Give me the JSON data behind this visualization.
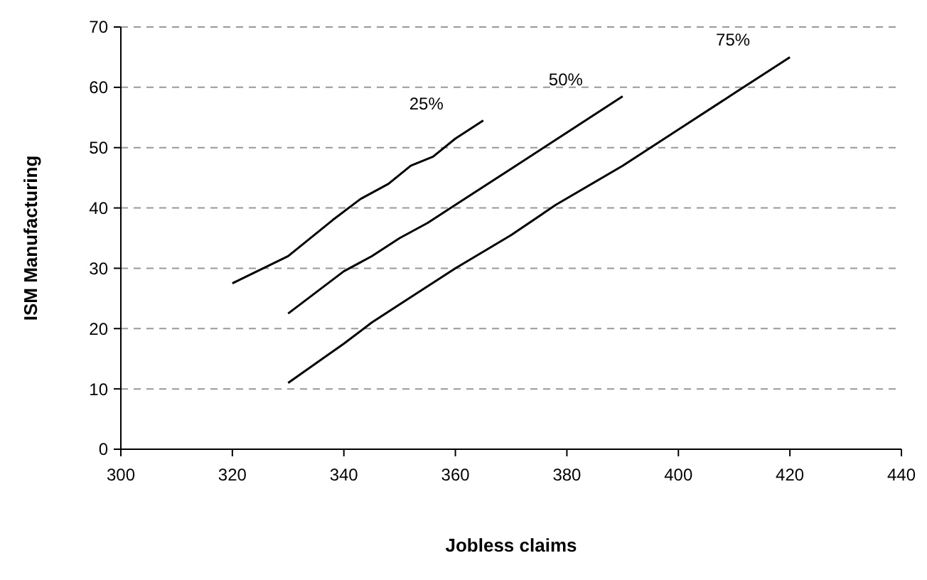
{
  "chart_data": {
    "type": "line",
    "xlabel": "Jobless claims",
    "ylabel": "ISM Manufacturing",
    "xlim": [
      300,
      440
    ],
    "xticks": [
      300,
      320,
      340,
      360,
      380,
      400,
      420,
      440
    ],
    "ylim": [
      0,
      70
    ],
    "yticks": [
      0,
      10,
      20,
      30,
      40,
      50,
      60,
      70
    ],
    "grid": "y",
    "legend": false,
    "marker": "none",
    "line_style": "solid",
    "series": [
      {
        "name": "25%",
        "color": "#000000",
        "x": [
          320,
          330,
          338,
          343,
          348,
          352,
          356,
          360,
          365
        ],
        "values": [
          27.5,
          32,
          38,
          41.5,
          44,
          47,
          48.5,
          51.5,
          54.5
        ]
      },
      {
        "name": "50%",
        "color": "#000000",
        "x": [
          330,
          335,
          340,
          345,
          350,
          355,
          360,
          370,
          380,
          390
        ],
        "values": [
          22.5,
          26,
          29.5,
          32,
          35,
          37.5,
          40.5,
          46.5,
          52.5,
          58.5
        ]
      },
      {
        "name": "75%",
        "color": "#000000",
        "x": [
          330,
          340,
          345,
          350,
          360,
          370,
          378,
          390,
          400,
          410,
          420
        ],
        "values": [
          11,
          17.5,
          21,
          24,
          30,
          35.5,
          40.5,
          47,
          53,
          59,
          65
        ]
      }
    ]
  }
}
